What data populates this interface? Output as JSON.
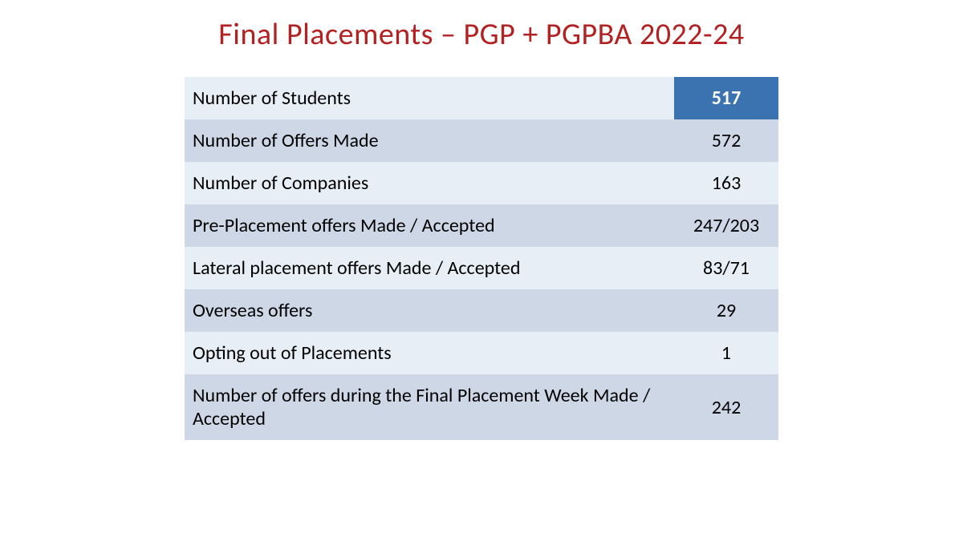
{
  "title": "Final Placements – PGP + PGPBA 2022-24",
  "table": {
    "type": "table",
    "background_odd": "#e8eef5",
    "background_even": "#ced7e6",
    "highlight_bg": "#3b72b0",
    "highlight_text": "#ffffff",
    "label_fontsize": 24,
    "value_fontsize": 24,
    "text_color": "#000000",
    "rows": [
      {
        "label": "Number of Students",
        "value": "517",
        "highlight": true
      },
      {
        "label": "Number of Offers Made",
        "value": "572",
        "highlight": false
      },
      {
        "label": "Number of Companies",
        "value": "163",
        "highlight": false
      },
      {
        "label": "Pre-Placement offers Made / Accepted",
        "value": "247/203",
        "highlight": false
      },
      {
        "label": "Lateral placement offers Made / Accepted",
        "value": "83/71",
        "highlight": false
      },
      {
        "label": "Overseas offers",
        "value": "29",
        "highlight": false
      },
      {
        "label": "Opting out of Placements",
        "value": "1",
        "highlight": false
      },
      {
        "label": "Number of offers during the Final Placement Week Made / Accepted",
        "value": "242",
        "highlight": false
      }
    ]
  }
}
